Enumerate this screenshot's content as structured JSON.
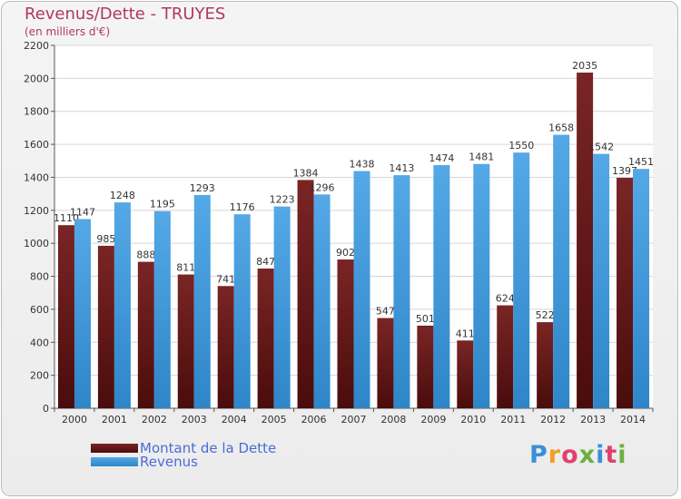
{
  "header": {
    "title": "Revenus/Dette - TRUYES",
    "subtitle": "(en milliers d'€)"
  },
  "logo": {
    "text": "Proxiti"
  },
  "colors": {
    "dette": "#7a2525",
    "dette_dark": "#4a0c0c",
    "revenus": "#54a8e6",
    "revenus_dark": "#2e86c8"
  },
  "chart_data": {
    "type": "bar",
    "title": "Revenus/Dette - TRUYES",
    "subtitle": "(en milliers d'€)",
    "categories": [
      "2000",
      "2001",
      "2002",
      "2003",
      "2004",
      "2005",
      "2006",
      "2007",
      "2008",
      "2009",
      "2010",
      "2011",
      "2012",
      "2013",
      "2014"
    ],
    "series": [
      {
        "name": "Montant de la Dette",
        "values": [
          1110,
          985,
          888,
          811,
          741,
          847,
          1384,
          902,
          547,
          501,
          411,
          624,
          522,
          2035,
          1397
        ]
      },
      {
        "name": "Revenus",
        "values": [
          1147,
          1248,
          1195,
          1293,
          1176,
          1223,
          1296,
          1438,
          1413,
          1474,
          1481,
          1550,
          1658,
          1542,
          1451
        ]
      }
    ],
    "ylim": [
      0,
      2200
    ],
    "yticks": [
      0,
      200,
      400,
      600,
      800,
      1000,
      1200,
      1400,
      1600,
      1800,
      2000,
      2200
    ],
    "grid": true,
    "legend": "bottom-left"
  }
}
